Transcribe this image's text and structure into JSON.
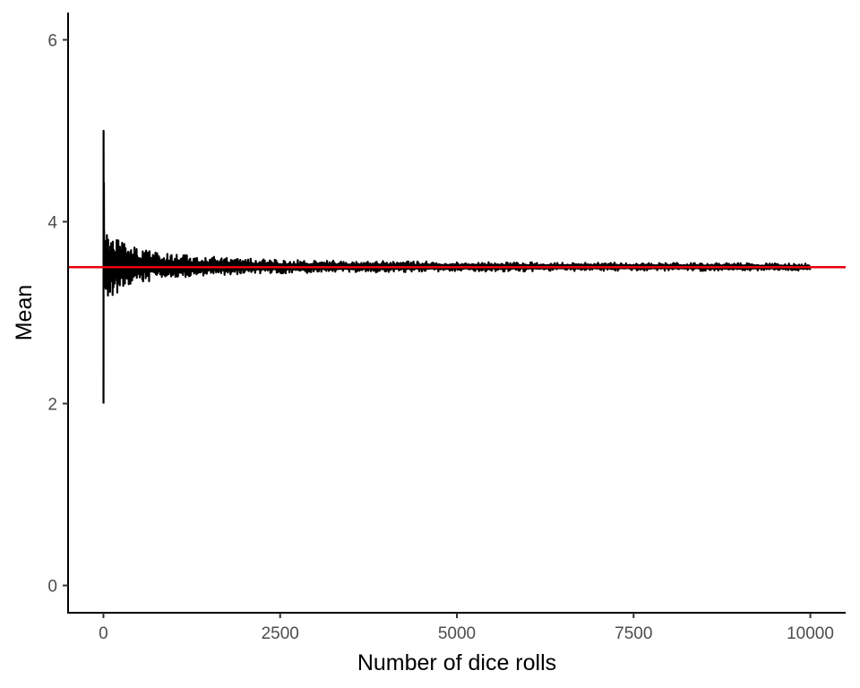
{
  "chart_data": {
    "type": "line",
    "title": "",
    "xlabel": "Number of dice rolls",
    "ylabel": "Mean",
    "xlim": [
      -500,
      10500
    ],
    "ylim": [
      -0.3,
      6.3
    ],
    "x_ticks": [
      0,
      2500,
      5000,
      7500,
      10000
    ],
    "x_tick_labels": [
      "0",
      "2500",
      "5000",
      "7500",
      "10000"
    ],
    "y_ticks": [
      0,
      2,
      4,
      6
    ],
    "y_tick_labels": [
      "0",
      "2",
      "4",
      "6"
    ],
    "grid": false,
    "legend": "none",
    "reference_line": {
      "y": 3.5,
      "color": "#e8000b"
    },
    "series": [
      {
        "color": "#000000",
        "x_start": 1,
        "x_end": 10000,
        "values": [
          2.0,
          5.0,
          4.33,
          3.5,
          3.8,
          3.67,
          4.43,
          4.0,
          3.78,
          3.9,
          3.64,
          3.42,
          3.54,
          3.36,
          3.47,
          3.31,
          3.41,
          3.28,
          3.37,
          3.45,
          3.52,
          3.38,
          3.3,
          3.42,
          3.55,
          3.61,
          3.47,
          3.39,
          3.52,
          3.6
        ],
        "band": [
          [
            30,
            3.05,
            3.95
          ],
          [
            50,
            3.08,
            3.86
          ],
          [
            100,
            3.18,
            3.82
          ],
          [
            200,
            3.22,
            3.8
          ],
          [
            300,
            3.28,
            3.76
          ],
          [
            500,
            3.33,
            3.7
          ],
          [
            800,
            3.36,
            3.66
          ],
          [
            1200,
            3.39,
            3.63
          ],
          [
            1700,
            3.41,
            3.61
          ],
          [
            2500,
            3.43,
            3.58
          ],
          [
            3500,
            3.44,
            3.57
          ],
          [
            5000,
            3.45,
            3.56
          ],
          [
            7500,
            3.46,
            3.55
          ],
          [
            10000,
            3.46,
            3.54
          ]
        ]
      }
    ]
  }
}
